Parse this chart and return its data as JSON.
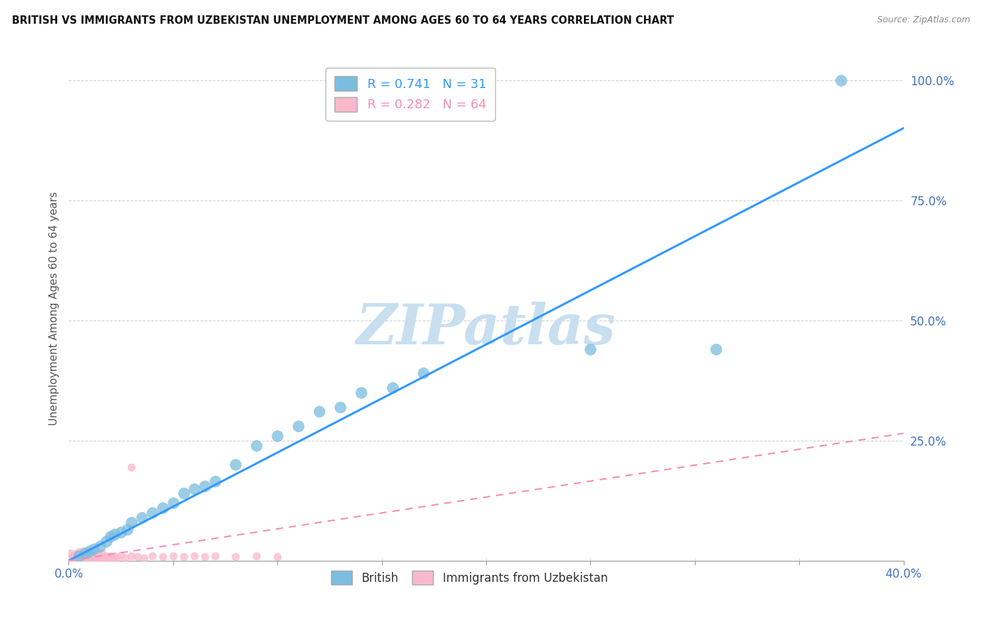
{
  "title": "BRITISH VS IMMIGRANTS FROM UZBEKISTAN UNEMPLOYMENT AMONG AGES 60 TO 64 YEARS CORRELATION CHART",
  "source": "Source: ZipAtlas.com",
  "ylabel": "Unemployment Among Ages 60 to 64 years",
  "xlim": [
    0.0,
    0.4
  ],
  "ylim": [
    0.0,
    1.05
  ],
  "xticks": [
    0.0,
    0.05,
    0.1,
    0.15,
    0.2,
    0.25,
    0.3,
    0.35,
    0.4
  ],
  "xticklabels": [
    "0.0%",
    "",
    "",
    "",
    "",
    "",
    "",
    "",
    "40.0%"
  ],
  "ytick_positions": [
    0.25,
    0.5,
    0.75,
    1.0
  ],
  "ytick_labels": [
    "25.0%",
    "50.0%",
    "75.0%",
    "100.0%"
  ],
  "british_color": "#7bbde0",
  "uzbekistan_color": "#f9b8cb",
  "british_line_color": "#3399ff",
  "uzbekistan_line_color": "#f48fb1",
  "british_R": 0.741,
  "british_N": 31,
  "uzbekistan_R": 0.282,
  "uzbekistan_N": 64,
  "british_scatter_x": [
    0.005,
    0.008,
    0.01,
    0.012,
    0.015,
    0.018,
    0.02,
    0.022,
    0.025,
    0.028,
    0.03,
    0.035,
    0.04,
    0.045,
    0.05,
    0.055,
    0.06,
    0.065,
    0.07,
    0.08,
    0.09,
    0.1,
    0.11,
    0.12,
    0.13,
    0.14,
    0.155,
    0.17,
    0.25,
    0.31,
    0.37
  ],
  "british_scatter_y": [
    0.01,
    0.015,
    0.02,
    0.025,
    0.03,
    0.04,
    0.05,
    0.055,
    0.06,
    0.065,
    0.08,
    0.09,
    0.1,
    0.11,
    0.12,
    0.14,
    0.15,
    0.155,
    0.165,
    0.2,
    0.24,
    0.26,
    0.28,
    0.31,
    0.32,
    0.35,
    0.36,
    0.39,
    0.44,
    0.44,
    1.0
  ],
  "uzbekistan_scatter_x": [
    0.001,
    0.001,
    0.002,
    0.002,
    0.003,
    0.003,
    0.003,
    0.004,
    0.004,
    0.004,
    0.005,
    0.005,
    0.005,
    0.006,
    0.006,
    0.006,
    0.007,
    0.007,
    0.007,
    0.007,
    0.008,
    0.008,
    0.008,
    0.009,
    0.009,
    0.01,
    0.01,
    0.01,
    0.011,
    0.011,
    0.012,
    0.012,
    0.013,
    0.013,
    0.014,
    0.014,
    0.015,
    0.015,
    0.016,
    0.016,
    0.017,
    0.018,
    0.019,
    0.02,
    0.021,
    0.022,
    0.023,
    0.025,
    0.027,
    0.03,
    0.033,
    0.036,
    0.04,
    0.045,
    0.05,
    0.055,
    0.06,
    0.065,
    0.07,
    0.08,
    0.09,
    0.1,
    0.03,
    0.02
  ],
  "uzbekistan_scatter_y": [
    0.005,
    0.015,
    0.005,
    0.01,
    0.005,
    0.008,
    0.012,
    0.005,
    0.008,
    0.015,
    0.005,
    0.01,
    0.018,
    0.005,
    0.01,
    0.015,
    0.005,
    0.008,
    0.012,
    0.02,
    0.005,
    0.01,
    0.015,
    0.005,
    0.012,
    0.005,
    0.01,
    0.018,
    0.005,
    0.015,
    0.005,
    0.012,
    0.005,
    0.01,
    0.005,
    0.015,
    0.005,
    0.01,
    0.005,
    0.015,
    0.005,
    0.01,
    0.005,
    0.01,
    0.005,
    0.01,
    0.005,
    0.012,
    0.005,
    0.01,
    0.008,
    0.005,
    0.01,
    0.008,
    0.01,
    0.008,
    0.01,
    0.008,
    0.01,
    0.008,
    0.01,
    0.008,
    0.195,
    0.05
  ],
  "british_line_x": [
    0.0,
    0.4
  ],
  "british_line_y": [
    0.0,
    0.9
  ],
  "uzbekistan_line_x": [
    0.0,
    0.4
  ],
  "uzbekistan_line_y": [
    0.0,
    0.265
  ],
  "watermark_text": "ZIPatlas",
  "watermark_color": "#c8dff0",
  "background_color": "#ffffff",
  "grid_color": "#d0d0d0"
}
